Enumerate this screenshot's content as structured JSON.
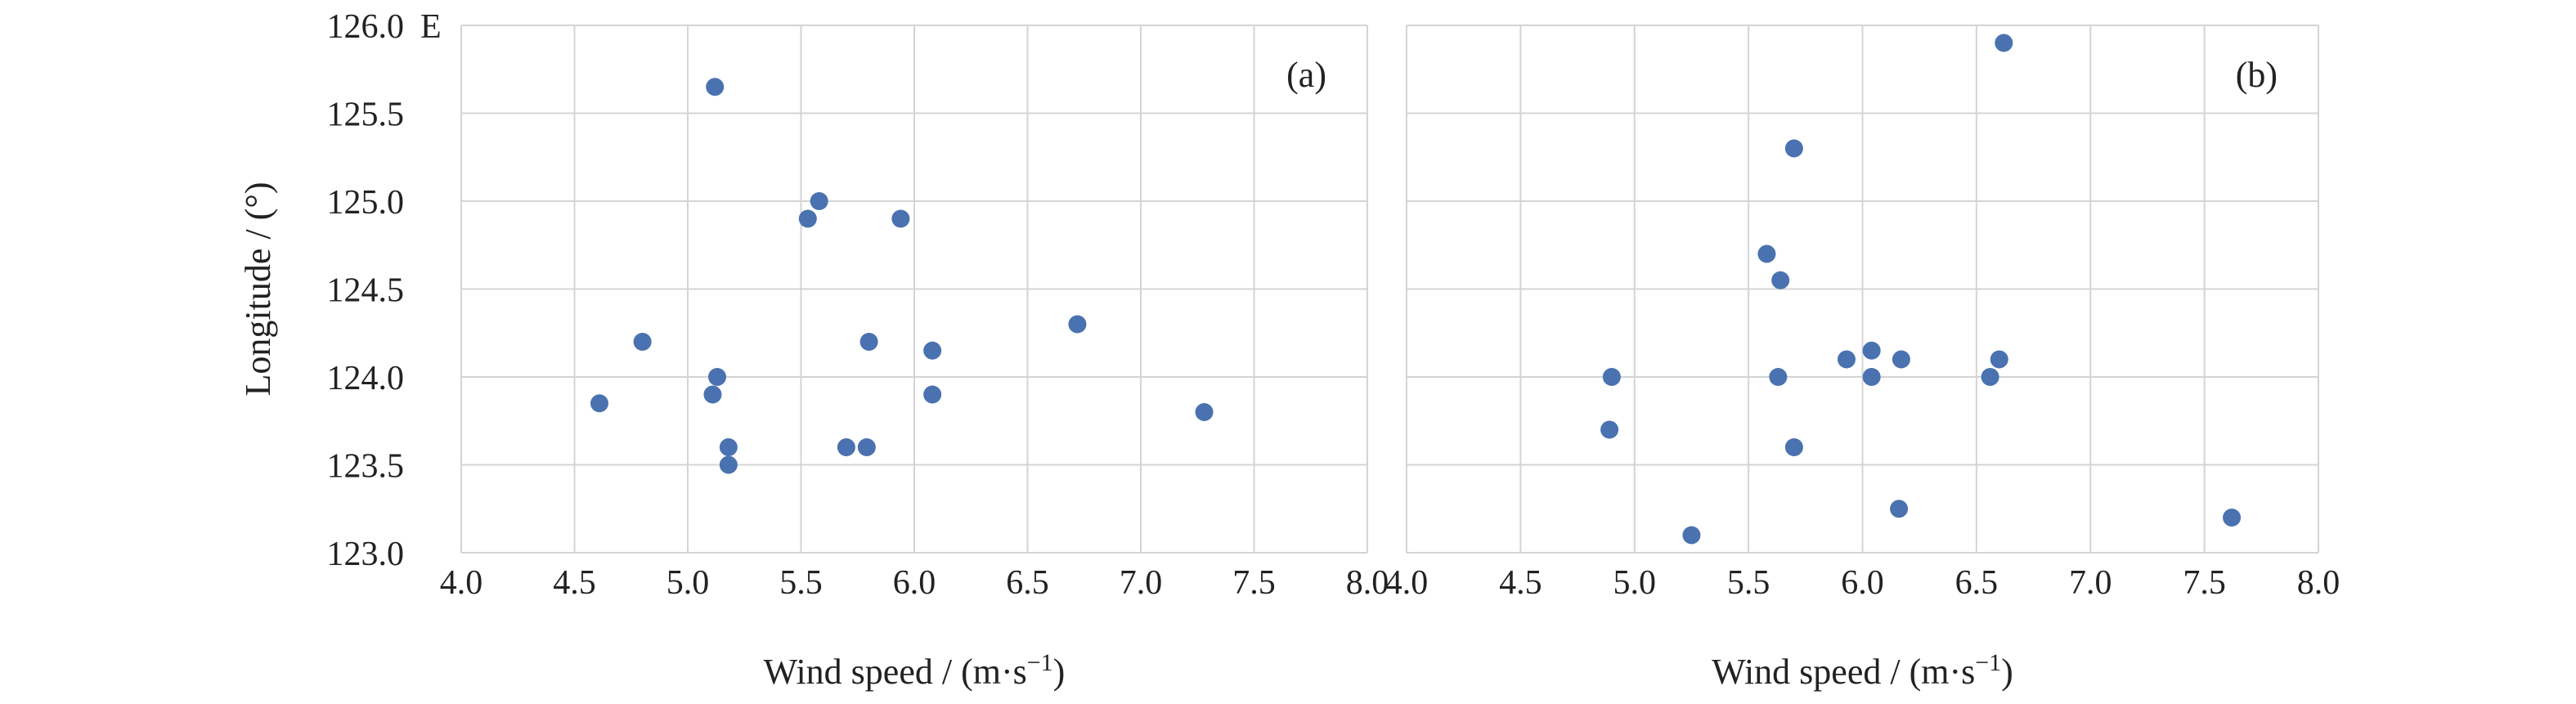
{
  "chart_data": [
    {
      "panel": "(a)",
      "type": "scatter",
      "ylabel": "Longitude / (°)",
      "ylabel_unit_suffix": "E",
      "xlabel": "Wind speed / (m·s",
      "xlabel_sup": "−1",
      "xlabel_close": ")",
      "xlim": [
        4.0,
        8.0
      ],
      "ylim": [
        123.0,
        126.0
      ],
      "xticks": [
        "4.0",
        "4.5",
        "5.0",
        "5.5",
        "6.0",
        "6.5",
        "7.0",
        "7.5",
        "8.0"
      ],
      "yticks": [
        "123.0",
        "123.5",
        "124.0",
        "124.5",
        "125.0",
        "125.5",
        "126.0"
      ],
      "grid": true,
      "point_color": "#4a72b0",
      "points": [
        {
          "x": 5.12,
          "y": 125.65
        },
        {
          "x": 5.58,
          "y": 125.0
        },
        {
          "x": 5.53,
          "y": 124.9
        },
        {
          "x": 5.94,
          "y": 124.9
        },
        {
          "x": 4.8,
          "y": 124.2
        },
        {
          "x": 5.8,
          "y": 124.2
        },
        {
          "x": 6.08,
          "y": 124.15
        },
        {
          "x": 6.72,
          "y": 124.3
        },
        {
          "x": 5.13,
          "y": 124.0
        },
        {
          "x": 5.11,
          "y": 123.9
        },
        {
          "x": 6.08,
          "y": 123.9
        },
        {
          "x": 4.61,
          "y": 123.85
        },
        {
          "x": 7.28,
          "y": 123.8
        },
        {
          "x": 5.18,
          "y": 123.6
        },
        {
          "x": 5.7,
          "y": 123.6
        },
        {
          "x": 5.79,
          "y": 123.6
        },
        {
          "x": 5.18,
          "y": 123.5
        }
      ]
    },
    {
      "panel": "(b)",
      "type": "scatter",
      "xlabel": "Wind speed / (m·s",
      "xlabel_sup": "−1",
      "xlabel_close": ")",
      "xlim": [
        4.0,
        8.0
      ],
      "ylim": [
        123.0,
        126.0
      ],
      "xticks": [
        "4.0",
        "4.5",
        "5.0",
        "5.5",
        "6.0",
        "6.5",
        "7.0",
        "7.5",
        "8.0"
      ],
      "grid": true,
      "point_color": "#4a72b0",
      "points": [
        {
          "x": 6.62,
          "y": 125.9
        },
        {
          "x": 5.7,
          "y": 125.3
        },
        {
          "x": 5.58,
          "y": 124.7
        },
        {
          "x": 5.64,
          "y": 124.55
        },
        {
          "x": 5.93,
          "y": 124.1
        },
        {
          "x": 6.04,
          "y": 124.15
        },
        {
          "x": 6.17,
          "y": 124.1
        },
        {
          "x": 6.6,
          "y": 124.1
        },
        {
          "x": 4.9,
          "y": 124.0
        },
        {
          "x": 5.63,
          "y": 124.0
        },
        {
          "x": 6.04,
          "y": 124.0
        },
        {
          "x": 6.56,
          "y": 124.0
        },
        {
          "x": 4.89,
          "y": 123.7
        },
        {
          "x": 5.7,
          "y": 123.6
        },
        {
          "x": 6.16,
          "y": 123.25
        },
        {
          "x": 7.62,
          "y": 123.2
        },
        {
          "x": 5.25,
          "y": 123.1
        }
      ]
    }
  ]
}
